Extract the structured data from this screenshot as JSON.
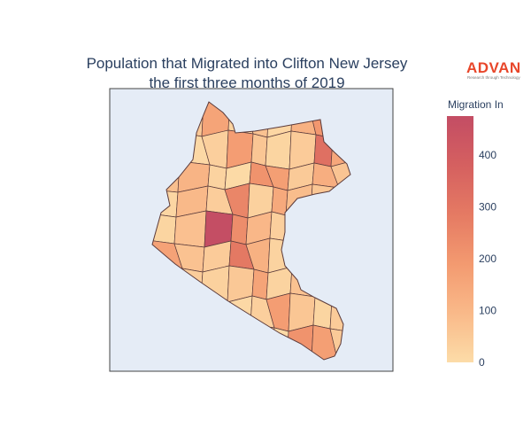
{
  "title": {
    "line1": "Population that Migrated into Clifton New Jersey",
    "line2": "the first three months of 2019"
  },
  "logo": {
    "name": "ADVAN",
    "tagline": "Research through Technology",
    "color": "#e8462a"
  },
  "colorbar": {
    "title": "Migration In",
    "min": 0,
    "max": 475,
    "ticks": [
      0,
      100,
      200,
      300,
      400
    ],
    "colorscale": [
      "#fcdca8",
      "#f9b989",
      "#f39a70",
      "#e57a63",
      "#d56060",
      "#c34d64"
    ]
  },
  "map": {
    "background": "#e5ecf6",
    "frame_color": "#444444",
    "tract_values": [
      30,
      55,
      160,
      25,
      70,
      15,
      120,
      200,
      40,
      90,
      10,
      35,
      180,
      60,
      20,
      45,
      320,
      150,
      80,
      110,
      25,
      5,
      210,
      175,
      50,
      130,
      65,
      15,
      95,
      40,
      250,
      30,
      145,
      85,
      60,
      190,
      20,
      75,
      470,
      230,
      100,
      35,
      55,
      140,
      10,
      165,
      70,
      45,
      290,
      120,
      25,
      60,
      185,
      90,
      15,
      40
    ]
  }
}
